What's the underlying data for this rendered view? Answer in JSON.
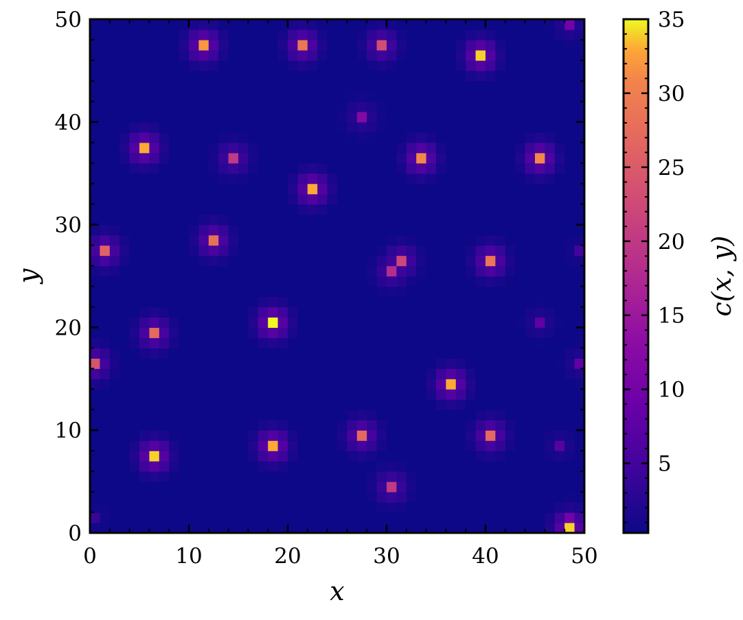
{
  "chart_data": {
    "type": "heatmap",
    "title": "",
    "xlabel": "x",
    "ylabel": "y",
    "colorbar_label": "c(x, y)",
    "colormap": "plasma",
    "grid_size": [
      50,
      50
    ],
    "xlim": [
      0,
      50
    ],
    "ylim": [
      0,
      50
    ],
    "x_ticks": [
      "0",
      "10",
      "20",
      "30",
      "40",
      "50"
    ],
    "y_ticks": [
      "0",
      "10",
      "20",
      "30",
      "40",
      "50"
    ],
    "clim": [
      0.3,
      35
    ],
    "colorbar_ticks": [
      "5",
      "10",
      "15",
      "20",
      "25",
      "30",
      "35"
    ],
    "background_value": 0.3,
    "peaks": [
      {
        "x": 11.5,
        "y": 47.5,
        "value": 32
      },
      {
        "x": 21.5,
        "y": 47.5,
        "value": 29
      },
      {
        "x": 29.5,
        "y": 47.5,
        "value": 23
      },
      {
        "x": 39.5,
        "y": 46.5,
        "value": 34
      },
      {
        "x": 48.5,
        "y": 49.5,
        "value": 10
      },
      {
        "x": 27.5,
        "y": 40.5,
        "value": 12
      },
      {
        "x": 5.5,
        "y": 37.5,
        "value": 33
      },
      {
        "x": 14.5,
        "y": 36.5,
        "value": 20
      },
      {
        "x": 33.5,
        "y": 36.5,
        "value": 31
      },
      {
        "x": 45.5,
        "y": 36.5,
        "value": 31
      },
      {
        "x": 22.5,
        "y": 33.5,
        "value": 33
      },
      {
        "x": 1.5,
        "y": 27.5,
        "value": 26
      },
      {
        "x": 12.5,
        "y": 28.5,
        "value": 28
      },
      {
        "x": 31.5,
        "y": 26.5,
        "value": 22
      },
      {
        "x": 30.5,
        "y": 25.5,
        "value": 18
      },
      {
        "x": 40.5,
        "y": 26.5,
        "value": 29
      },
      {
        "x": 49.5,
        "y": 27.5,
        "value": 5
      },
      {
        "x": 6.5,
        "y": 19.5,
        "value": 27
      },
      {
        "x": 18.5,
        "y": 20.5,
        "value": 35
      },
      {
        "x": 45.5,
        "y": 20.5,
        "value": 8
      },
      {
        "x": 0.5,
        "y": 16.5,
        "value": 24
      },
      {
        "x": 49.5,
        "y": 16.5,
        "value": 8
      },
      {
        "x": 36.5,
        "y": 14.5,
        "value": 33
      },
      {
        "x": 6.5,
        "y": 7.5,
        "value": 34
      },
      {
        "x": 18.5,
        "y": 8.5,
        "value": 33
      },
      {
        "x": 27.5,
        "y": 9.5,
        "value": 27
      },
      {
        "x": 40.5,
        "y": 9.5,
        "value": 27
      },
      {
        "x": 47.5,
        "y": 8.5,
        "value": 7
      },
      {
        "x": 30.5,
        "y": 4.5,
        "value": 20
      },
      {
        "x": 48.5,
        "y": 0.5,
        "value": 34
      },
      {
        "x": 48.5,
        "y": 1.5,
        "value": 10
      },
      {
        "x": 0.5,
        "y": 1.5,
        "value": 4
      }
    ]
  }
}
